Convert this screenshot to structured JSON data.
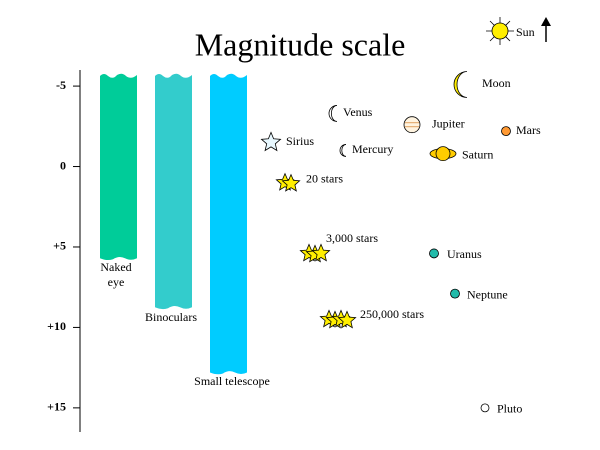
{
  "title": "Magnitude scale",
  "axis": {
    "ylim": [
      -6,
      16.5
    ],
    "ticks": [
      -5,
      0,
      {
        "value": 5,
        "label": "+5"
      },
      {
        "value": 10,
        "label": "+10"
      },
      {
        "value": 15,
        "label": "+15"
      }
    ]
  },
  "bars": [
    {
      "label": "Naked eye",
      "color": "#00cc99",
      "magnitude": 5.7
    },
    {
      "label": "Binoculars",
      "color": "#33cccc",
      "magnitude": 8.75
    },
    {
      "label": "Small telescope",
      "color": "#00ccff",
      "magnitude": 12.8
    }
  ],
  "sun_label": "Sun",
  "objects": [
    {
      "label": "Moon",
      "magnitude": -5.1
    },
    {
      "label": "Venus",
      "magnitude": -3.3
    },
    {
      "label": "Jupiter",
      "magnitude": -2.6
    },
    {
      "label": "Mars",
      "magnitude": -2.2
    },
    {
      "label": "Sirius",
      "magnitude": -1.5
    },
    {
      "label": "Mercury",
      "magnitude": -1
    },
    {
      "label": "Saturn",
      "magnitude": -0.8
    },
    {
      "label": "20 stars",
      "magnitude": 1
    },
    {
      "label": "3,000 stars",
      "magnitude": 5.4
    },
    {
      "label": "Uranus",
      "magnitude": 5.4
    },
    {
      "label": "Neptune",
      "magnitude": 7.9
    },
    {
      "label": "250,000 stars",
      "magnitude": 9.5
    },
    {
      "label": "Pluto",
      "magnitude": 15
    }
  ]
}
